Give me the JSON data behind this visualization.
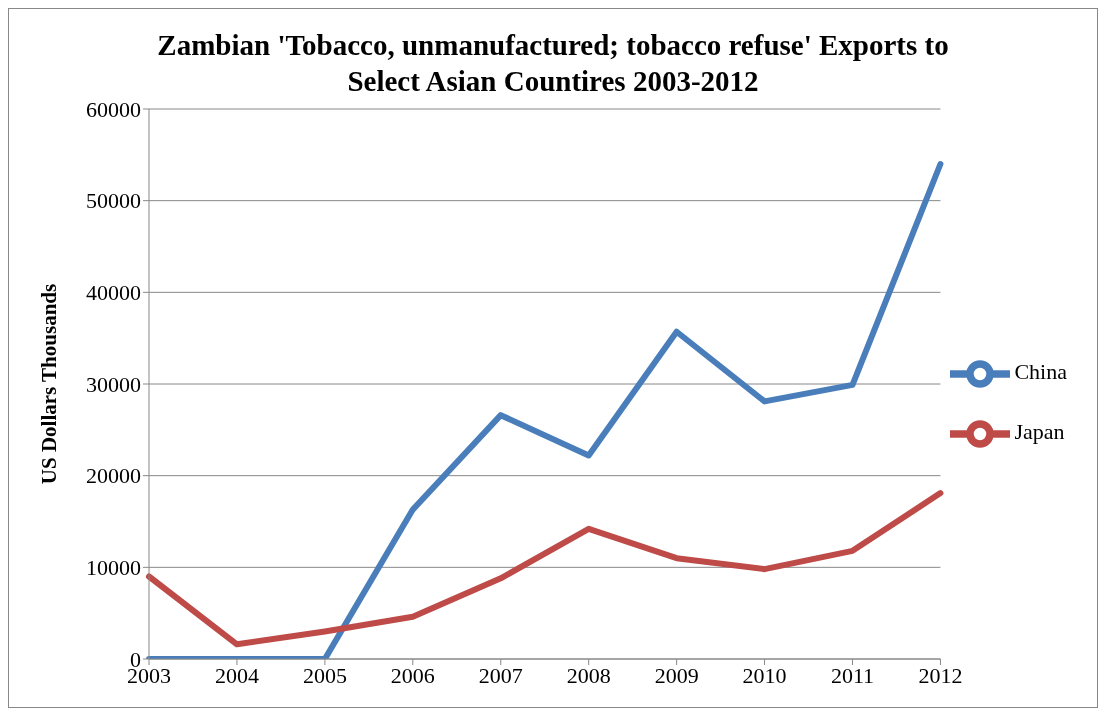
{
  "chart_data": {
    "type": "line",
    "title": "Zambian 'Tobacco, unmanufactured; tobacco refuse' Exports to Select Asian Countires 2003-2012",
    "ylabel": "US Dollars Thousands",
    "categories": [
      "2003",
      "2004",
      "2005",
      "2006",
      "2007",
      "2008",
      "2009",
      "2010",
      "2011",
      "2012"
    ],
    "series": [
      {
        "name": "China",
        "color": "#4a7ebb",
        "values": [
          0,
          0,
          0,
          16300,
          26600,
          22200,
          35700,
          28100,
          29900,
          54000
        ]
      },
      {
        "name": "Japan",
        "color": "#be4b48",
        "values": [
          9000,
          1600,
          3000,
          4600,
          8800,
          14200,
          11000,
          9800,
          11800,
          18100
        ]
      }
    ],
    "ylim": [
      0,
      60000
    ],
    "yticks": [
      0,
      10000,
      20000,
      30000,
      40000,
      50000,
      60000
    ],
    "grid": "y",
    "legend": "right",
    "marker": "none",
    "line_style": "solid"
  }
}
